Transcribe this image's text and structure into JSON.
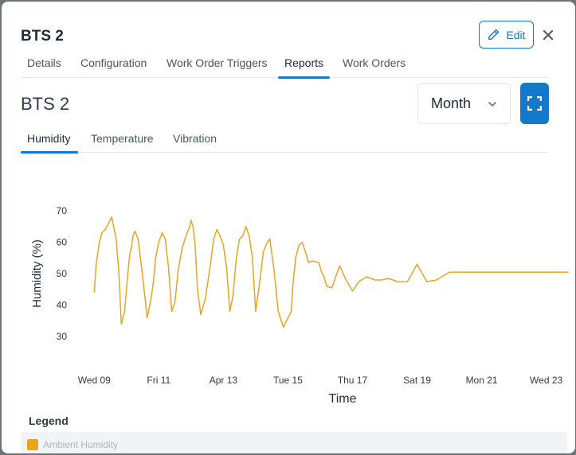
{
  "modal": {
    "title": "BTS 2",
    "edit_label": "Edit"
  },
  "tabs": [
    "Details",
    "Configuration",
    "Work Order Triggers",
    "Reports",
    "Work Orders"
  ],
  "active_tab": "Reports",
  "report": {
    "title": "BTS 2",
    "period": "Month",
    "subtabs": [
      "Humidity",
      "Temperature",
      "Vibration"
    ],
    "active_subtab": "Humidity"
  },
  "legend": {
    "title": "Legend",
    "items": [
      "Ambient Humidity"
    ]
  },
  "colors": {
    "accent": "#1479c8",
    "series": "#e8a520"
  },
  "chart_data": {
    "type": "line",
    "xlabel": "Time",
    "ylabel": "Humidity (%)",
    "x_ticks": [
      "Wed 09",
      "Fri 11",
      "Apr 13",
      "Tue 15",
      "Thu 17",
      "Sat 19",
      "Mon 21",
      "Wed 23"
    ],
    "y_ticks": [
      30,
      40,
      50,
      60,
      70
    ],
    "ylim": [
      25,
      72
    ],
    "xlim": [
      -0.25,
      7.35
    ],
    "series": [
      {
        "name": "Ambient Humidity",
        "x": [
          0,
          0.03,
          0.08,
          0.12,
          0.17,
          0.22,
          0.27,
          0.3,
          0.34,
          0.38,
          0.42,
          0.47,
          0.52,
          0.55,
          0.58,
          0.6,
          0.63,
          0.68,
          0.75,
          0.82,
          0.88,
          0.92,
          0.95,
          1.0,
          1.05,
          1.1,
          1.15,
          1.2,
          1.25,
          1.3,
          1.36,
          1.42,
          1.48,
          1.5,
          1.53,
          1.56,
          1.6,
          1.65,
          1.72,
          1.8,
          1.85,
          1.9,
          1.95,
          2.0,
          2.05,
          2.1,
          2.15,
          2.2,
          2.25,
          2.3,
          2.35,
          2.4,
          2.45,
          2.5,
          2.56,
          2.62,
          2.68,
          2.72,
          2.78,
          2.85,
          2.93,
          3.0,
          3.05,
          3.08,
          3.12,
          3.17,
          3.22,
          3.27,
          3.32,
          3.36,
          3.4,
          3.48,
          3.5,
          3.52,
          3.55,
          3.6,
          3.68,
          3.8,
          3.9,
          4.0,
          4.1,
          4.22,
          4.35,
          4.45,
          4.55,
          4.7,
          4.85,
          5.0,
          5.15,
          5.3,
          5.5,
          5.75,
          6.0,
          6.15,
          6.25,
          6.35,
          6.5,
          6.75,
          7.0,
          7.25,
          7.35
        ],
        "y": [
          44,
          53,
          60,
          63,
          64,
          66,
          68,
          65,
          61,
          51,
          34,
          38,
          50,
          56,
          59,
          62,
          63.5,
          61,
          49,
          36,
          42,
          48,
          55,
          60,
          63,
          61,
          52,
          38,
          41,
          51,
          58,
          62,
          65,
          67,
          65,
          60,
          45,
          37,
          42,
          53,
          61,
          64,
          62,
          59,
          52,
          38,
          43,
          55,
          61,
          62,
          65,
          62,
          55,
          38,
          47,
          57,
          60,
          61,
          52,
          38,
          33,
          36,
          38,
          47,
          55,
          59,
          60,
          57,
          53.5,
          54,
          54,
          53.5,
          52,
          50.5,
          49.5,
          46,
          45.5,
          52.5,
          48,
          44.5,
          47.5,
          49,
          48,
          48,
          48.5,
          47.5,
          47.5,
          53,
          47.5,
          48,
          50.5,
          50.5,
          50.5,
          50.5,
          50.5,
          50.5,
          50.5,
          50.5,
          50.5,
          50.5,
          50.5
        ]
      }
    ]
  }
}
